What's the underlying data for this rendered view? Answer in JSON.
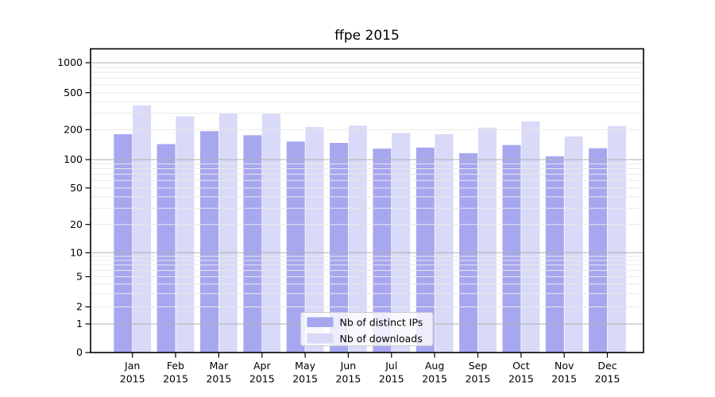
{
  "chart_data": {
    "type": "bar",
    "title": "ffpe 2015",
    "categories": [
      "Jan",
      "Feb",
      "Mar",
      "Apr",
      "May",
      "Jun",
      "Jul",
      "Aug",
      "Sep",
      "Oct",
      "Nov",
      "Dec"
    ],
    "year_label": "2015",
    "series": [
      {
        "name": "Nb of distinct IPs",
        "color": "#a7a7f0",
        "values": [
          180,
          143,
          193,
          176,
          152,
          147,
          129,
          132,
          116,
          140,
          108,
          130
        ]
      },
      {
        "name": "Nb of downloads",
        "color": "#d9d9f8",
        "values": [
          365,
          277,
          298,
          296,
          213,
          221,
          185,
          180,
          210,
          246,
          171,
          219
        ]
      }
    ],
    "yscale": "symlog",
    "yticks": [
      0,
      1,
      2,
      5,
      10,
      20,
      50,
      100,
      200,
      500,
      1000
    ],
    "ylim": [
      0,
      1390
    ],
    "xlabel": "",
    "ylabel": "",
    "grid": true,
    "grid_on_top": true,
    "legend_position": "lower-center"
  },
  "colors": {
    "major_grid": "#b0b0b0",
    "minor_grid": "#e9e9e9",
    "axis": "#000000",
    "tick_label": "#000000",
    "legend_border": "#cccccc",
    "legend_bg": "#ffffff",
    "background": "#ffffff"
  }
}
